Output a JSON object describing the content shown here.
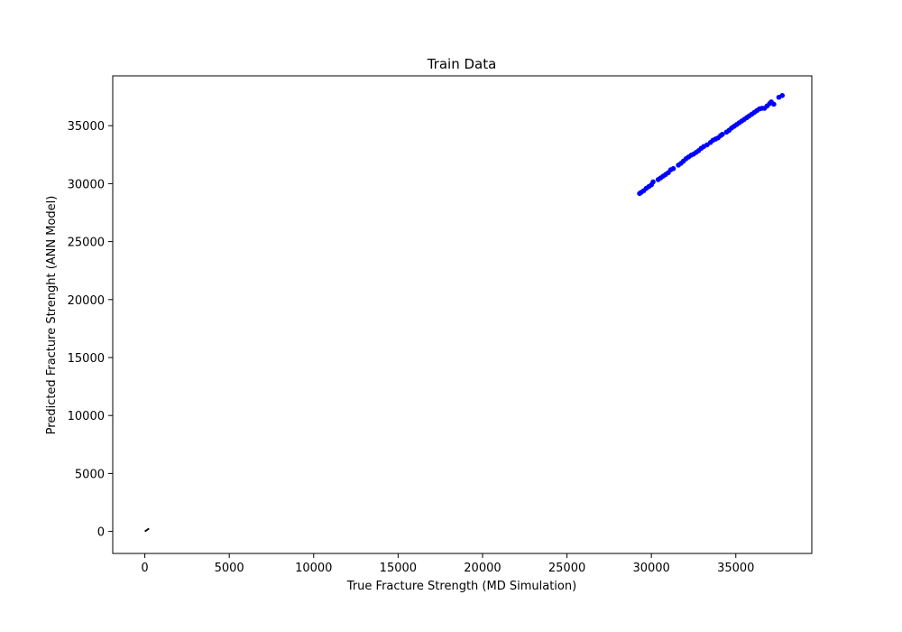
{
  "chart_data": {
    "type": "scatter",
    "title": "Train Data",
    "xlabel": "True Fracture Strength (MD Simulation)",
    "ylabel": "Predicted Fracture Strenght (ANN Model)",
    "xlim": [
      -1900,
      39500
    ],
    "ylim": [
      -1900,
      39300
    ],
    "xticks": [
      0,
      5000,
      10000,
      15000,
      20000,
      25000,
      30000,
      35000
    ],
    "yticks": [
      0,
      5000,
      10000,
      15000,
      20000,
      25000,
      30000,
      35000
    ],
    "grid": false,
    "reference_line": {
      "x": [
        0,
        250
      ],
      "y": [
        0,
        250
      ],
      "color": "#000000"
    },
    "series": [
      {
        "marker_color": "#0000ff",
        "points": [
          [
            29300,
            29150
          ],
          [
            29400,
            29250
          ],
          [
            29550,
            29400
          ],
          [
            29700,
            29600
          ],
          [
            29850,
            29750
          ],
          [
            30000,
            29900
          ],
          [
            30100,
            30150
          ],
          [
            30400,
            30350
          ],
          [
            30550,
            30500
          ],
          [
            30700,
            30650
          ],
          [
            30850,
            30800
          ],
          [
            31000,
            30950
          ],
          [
            31150,
            31200
          ],
          [
            31300,
            31300
          ],
          [
            31600,
            31600
          ],
          [
            31750,
            31750
          ],
          [
            31900,
            31950
          ],
          [
            32050,
            32150
          ],
          [
            32200,
            32300
          ],
          [
            32350,
            32450
          ],
          [
            32500,
            32550
          ],
          [
            32650,
            32700
          ],
          [
            32800,
            32850
          ],
          [
            32950,
            33050
          ],
          [
            33100,
            33200
          ],
          [
            33300,
            33350
          ],
          [
            33500,
            33550
          ],
          [
            33650,
            33750
          ],
          [
            33800,
            33850
          ],
          [
            33950,
            33950
          ],
          [
            34100,
            34150
          ],
          [
            34200,
            34250
          ],
          [
            34450,
            34450
          ],
          [
            34600,
            34600
          ],
          [
            34750,
            34800
          ],
          [
            34900,
            34950
          ],
          [
            35050,
            35100
          ],
          [
            35200,
            35250
          ],
          [
            35350,
            35400
          ],
          [
            35500,
            35550
          ],
          [
            35650,
            35700
          ],
          [
            35800,
            35850
          ],
          [
            35950,
            36000
          ],
          [
            36100,
            36150
          ],
          [
            36250,
            36300
          ],
          [
            36400,
            36450
          ],
          [
            36550,
            36500
          ],
          [
            36700,
            36500
          ],
          [
            36850,
            36700
          ],
          [
            37000,
            36900
          ],
          [
            37100,
            37050
          ],
          [
            37250,
            36850
          ],
          [
            37550,
            37450
          ],
          [
            37750,
            37600
          ]
        ]
      }
    ]
  }
}
